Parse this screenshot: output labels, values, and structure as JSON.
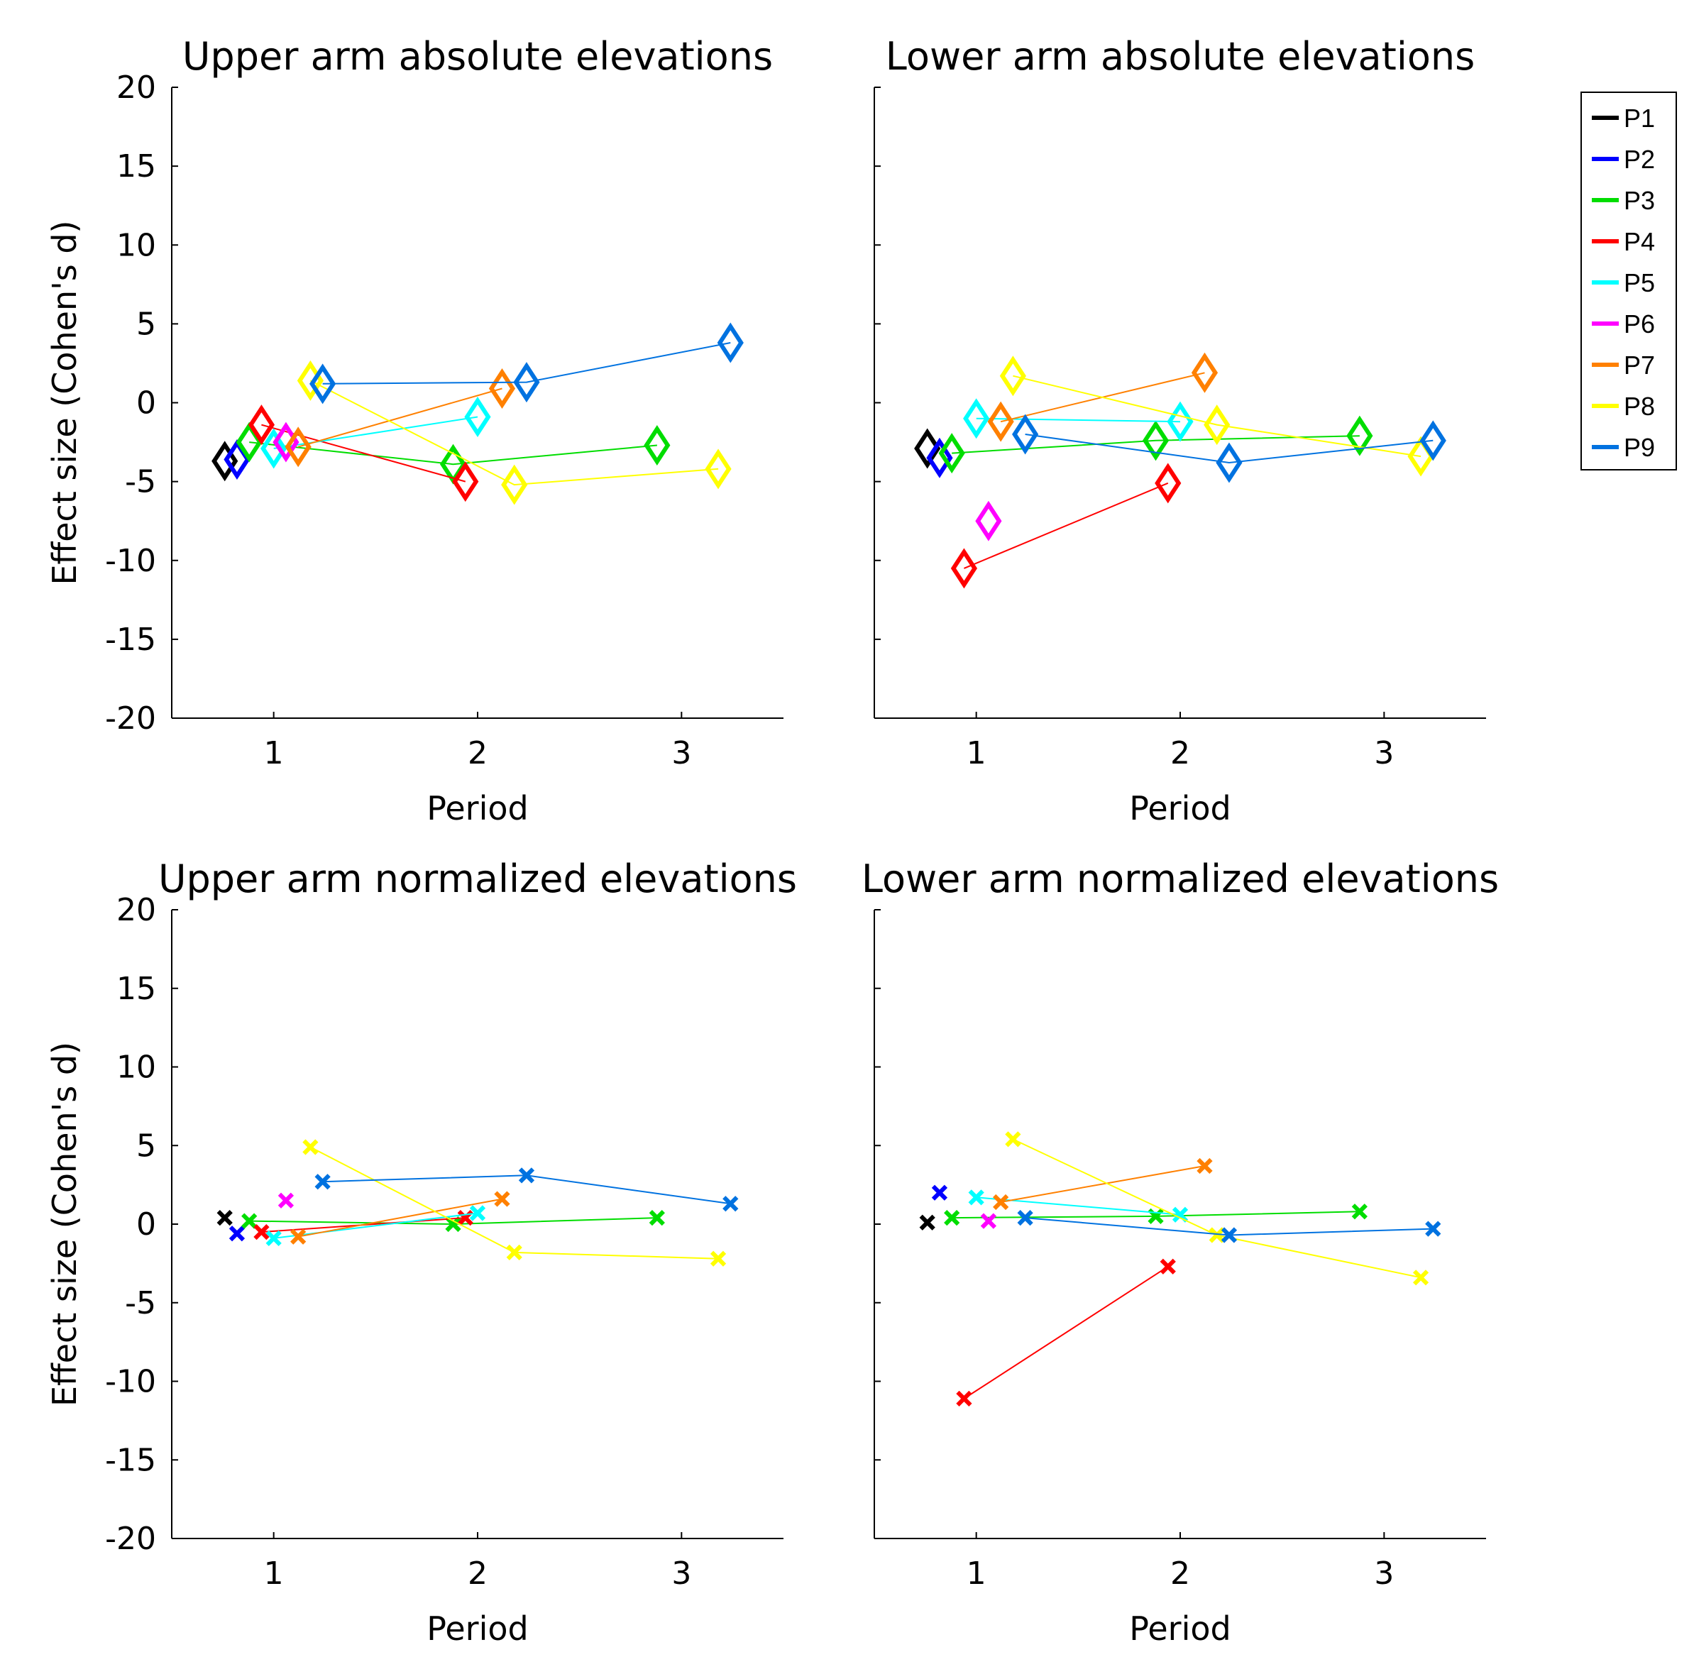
{
  "chart_data": [
    {
      "type": "line",
      "title": "Upper arm absolute elevations",
      "xlabel": "Period",
      "ylabel": "Effect size (Cohen's d)",
      "xticks": [
        "1",
        "2",
        "3"
      ],
      "yticks": [
        "20",
        "15",
        "10",
        "5",
        "0",
        "-5",
        "-10",
        "-15",
        "-20"
      ],
      "xlim": [
        0.5,
        3.5
      ],
      "ylim": [
        -20,
        20
      ],
      "marker": "diamond",
      "series": [
        {
          "name": "P1",
          "points": [
            [
              0.76,
              -3.7
            ]
          ]
        },
        {
          "name": "P2",
          "points": [
            [
              0.82,
              -3.6
            ]
          ]
        },
        {
          "name": "P3",
          "points": [
            [
              0.88,
              -2.5
            ],
            [
              1.88,
              -3.9
            ],
            [
              2.88,
              -2.7
            ]
          ]
        },
        {
          "name": "P4",
          "points": [
            [
              0.94,
              -1.4
            ],
            [
              1.94,
              -5.0
            ]
          ]
        },
        {
          "name": "P5",
          "points": [
            [
              1.0,
              -2.9
            ],
            [
              2.0,
              -0.9
            ]
          ]
        },
        {
          "name": "P6",
          "points": [
            [
              1.06,
              -2.5
            ]
          ]
        },
        {
          "name": "P7",
          "points": [
            [
              1.12,
              -2.8
            ],
            [
              2.12,
              0.9
            ]
          ]
        },
        {
          "name": "P8",
          "points": [
            [
              1.18,
              1.4
            ],
            [
              2.18,
              -5.2
            ],
            [
              3.18,
              -4.2
            ]
          ]
        },
        {
          "name": "P9",
          "points": [
            [
              1.24,
              1.2
            ],
            [
              2.24,
              1.3
            ],
            [
              3.24,
              3.8
            ]
          ]
        }
      ]
    },
    {
      "type": "line",
      "title": "Lower arm absolute elevations",
      "xlabel": "Period",
      "ylabel": "",
      "xticks": [
        "1",
        "2",
        "3"
      ],
      "yticks": [],
      "xlim": [
        0.5,
        3.5
      ],
      "ylim": [
        -20,
        20
      ],
      "marker": "diamond",
      "series": [
        {
          "name": "P1",
          "points": [
            [
              0.76,
              -2.9
            ]
          ]
        },
        {
          "name": "P2",
          "points": [
            [
              0.82,
              -3.5
            ]
          ]
        },
        {
          "name": "P3",
          "points": [
            [
              0.88,
              -3.2
            ],
            [
              1.88,
              -2.4
            ],
            [
              2.88,
              -2.1
            ]
          ]
        },
        {
          "name": "P4",
          "points": [
            [
              0.94,
              -10.5
            ],
            [
              1.94,
              -5.1
            ]
          ]
        },
        {
          "name": "P5",
          "points": [
            [
              1.0,
              -1.0
            ],
            [
              2.0,
              -1.2
            ]
          ]
        },
        {
          "name": "P6",
          "points": [
            [
              1.06,
              -7.5
            ]
          ]
        },
        {
          "name": "P7",
          "points": [
            [
              1.12,
              -1.2
            ],
            [
              2.12,
              1.9
            ]
          ]
        },
        {
          "name": "P8",
          "points": [
            [
              1.18,
              1.7
            ],
            [
              2.18,
              -1.4
            ],
            [
              3.18,
              -3.4
            ]
          ]
        },
        {
          "name": "P9",
          "points": [
            [
              1.24,
              -2.0
            ],
            [
              2.24,
              -3.8
            ],
            [
              3.24,
              -2.4
            ]
          ]
        }
      ]
    },
    {
      "type": "line",
      "title": "Upper arm normalized elevations",
      "xlabel": "Period",
      "ylabel": "Effect size (Cohen's d)",
      "xticks": [
        "1",
        "2",
        "3"
      ],
      "yticks": [
        "20",
        "15",
        "10",
        "5",
        "0",
        "-5",
        "-10",
        "-15",
        "-20"
      ],
      "xlim": [
        0.5,
        3.5
      ],
      "ylim": [
        -20,
        20
      ],
      "marker": "x",
      "series": [
        {
          "name": "P1",
          "points": [
            [
              0.76,
              0.4
            ]
          ]
        },
        {
          "name": "P2",
          "points": [
            [
              0.82,
              -0.6
            ]
          ]
        },
        {
          "name": "P3",
          "points": [
            [
              0.88,
              0.2
            ],
            [
              1.88,
              0.0
            ],
            [
              2.88,
              0.4
            ]
          ]
        },
        {
          "name": "P4",
          "points": [
            [
              0.94,
              -0.5
            ],
            [
              1.94,
              0.4
            ]
          ]
        },
        {
          "name": "P5",
          "points": [
            [
              1.0,
              -0.9
            ],
            [
              2.0,
              0.7
            ]
          ]
        },
        {
          "name": "P6",
          "points": [
            [
              1.06,
              1.5
            ]
          ]
        },
        {
          "name": "P7",
          "points": [
            [
              1.12,
              -0.8
            ],
            [
              2.12,
              1.6
            ]
          ]
        },
        {
          "name": "P8",
          "points": [
            [
              1.18,
              4.9
            ],
            [
              2.18,
              -1.8
            ],
            [
              3.18,
              -2.2
            ]
          ]
        },
        {
          "name": "P9",
          "points": [
            [
              1.24,
              2.7
            ],
            [
              2.24,
              3.1
            ],
            [
              3.24,
              1.3
            ]
          ]
        }
      ]
    },
    {
      "type": "line",
      "title": "Lower arm normalized elevations",
      "xlabel": "Period",
      "ylabel": "",
      "xticks": [
        "1",
        "2",
        "3"
      ],
      "yticks": [],
      "xlim": [
        0.5,
        3.5
      ],
      "ylim": [
        -20,
        20
      ],
      "marker": "x",
      "series": [
        {
          "name": "P1",
          "points": [
            [
              0.76,
              0.1
            ]
          ]
        },
        {
          "name": "P2",
          "points": [
            [
              0.82,
              2.0
            ]
          ]
        },
        {
          "name": "P3",
          "points": [
            [
              0.88,
              0.4
            ],
            [
              1.88,
              0.5
            ],
            [
              2.88,
              0.8
            ]
          ]
        },
        {
          "name": "P4",
          "points": [
            [
              0.94,
              -11.1
            ],
            [
              1.94,
              -2.7
            ]
          ]
        },
        {
          "name": "P5",
          "points": [
            [
              1.0,
              1.7
            ],
            [
              2.0,
              0.6
            ]
          ]
        },
        {
          "name": "P6",
          "points": [
            [
              1.06,
              0.2
            ]
          ]
        },
        {
          "name": "P7",
          "points": [
            [
              1.12,
              1.4
            ],
            [
              2.12,
              3.7
            ]
          ]
        },
        {
          "name": "P8",
          "points": [
            [
              1.18,
              5.4
            ],
            [
              2.18,
              -0.7
            ],
            [
              3.18,
              -3.4
            ]
          ]
        },
        {
          "name": "P9",
          "points": [
            [
              1.24,
              0.4
            ],
            [
              2.24,
              -0.7
            ],
            [
              3.24,
              -0.3
            ]
          ]
        }
      ]
    }
  ],
  "legend": {
    "placement": "right",
    "entries": [
      {
        "label": "P1",
        "color": "#000000"
      },
      {
        "label": "P2",
        "color": "#0000ff"
      },
      {
        "label": "P3",
        "color": "#00dd00"
      },
      {
        "label": "P4",
        "color": "#ff0000"
      },
      {
        "label": "P5",
        "color": "#00ffff"
      },
      {
        "label": "P6",
        "color": "#ff00ff"
      },
      {
        "label": "P7",
        "color": "#ff8000"
      },
      {
        "label": "P8",
        "color": "#ffff00"
      },
      {
        "label": "P9",
        "color": "#0072e0"
      }
    ]
  }
}
